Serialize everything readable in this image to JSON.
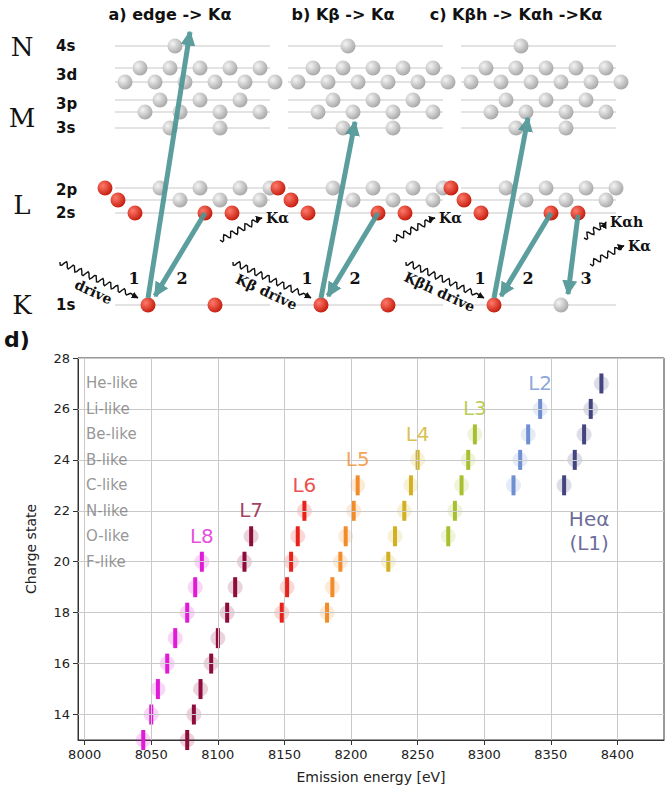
{
  "figure": {
    "panels": [
      {
        "title": "a) edge -> Kα",
        "drive": "drive",
        "steps": [
          "1",
          "2"
        ],
        "photons": [
          "Kα"
        ]
      },
      {
        "title": "b) Kβ -> Kα",
        "drive": "Kβ drive",
        "steps": [
          "1",
          "2"
        ],
        "photons": [
          "Kα"
        ]
      },
      {
        "title": "c) Kβh -> Kαh ->Kα",
        "drive": "Kβh drive",
        "steps": [
          "1",
          "2",
          "3"
        ],
        "photons": [
          "Kαh",
          "Kα"
        ]
      }
    ],
    "shells": [
      {
        "name": "N",
        "orbitals": [
          "4s"
        ]
      },
      {
        "name": "M",
        "orbitals": [
          "3d",
          "3p",
          "3s"
        ]
      },
      {
        "name": "L",
        "orbitals": [
          "2p",
          "2s"
        ]
      },
      {
        "name": "K",
        "orbitals": [
          "1s"
        ]
      }
    ]
  },
  "chart_data": {
    "type": "scatter",
    "panel_label": "d)",
    "x_label": "Emission energy [eV]",
    "y_label": "Charge state",
    "xlim": [
      7995,
      8435
    ],
    "ylim": [
      13,
      28
    ],
    "xticks": [
      8000,
      8050,
      8100,
      8150,
      8200,
      8250,
      8300,
      8350,
      8400
    ],
    "yticks": [
      14,
      16,
      18,
      20,
      22,
      24,
      26,
      28
    ],
    "grid": true,
    "marker": "vline",
    "charge_state_labels": [
      {
        "value": 27,
        "label": "He-like"
      },
      {
        "value": 26,
        "label": "Li-like"
      },
      {
        "value": 25,
        "label": "Be-like"
      },
      {
        "value": 24,
        "label": "B-like"
      },
      {
        "value": 23,
        "label": "C-like"
      },
      {
        "value": 22,
        "label": "N-like"
      },
      {
        "value": 21,
        "label": "O-like"
      },
      {
        "value": 20,
        "label": "F-like"
      }
    ],
    "series": [
      {
        "name": "Heα (L1)",
        "color": "#44447e",
        "x": [
          8388,
          8380,
          8375,
          8368,
          8360
        ],
        "values": [
          27,
          26,
          25,
          24,
          23
        ]
      },
      {
        "name": "L2",
        "color": "#6f8fd0",
        "x": [
          8342,
          8333,
          8327,
          8322
        ],
        "values": [
          26,
          25,
          24,
          23
        ]
      },
      {
        "name": "L3",
        "color": "#a8c030",
        "x": [
          8293,
          8288,
          8283,
          8278,
          8273
        ],
        "values": [
          25,
          24,
          23,
          22,
          21
        ]
      },
      {
        "name": "L4",
        "color": "#d2b022",
        "x": [
          8250,
          8245,
          8240,
          8233,
          8228
        ],
        "values": [
          24,
          23,
          22,
          21,
          20
        ]
      },
      {
        "name": "L5",
        "color": "#f28c28",
        "x": [
          8205,
          8202,
          8196,
          8192,
          8186,
          8182
        ],
        "values": [
          23,
          22,
          21,
          20,
          19,
          18
        ]
      },
      {
        "name": "L6",
        "color": "#e8211a",
        "x": [
          8165,
          8160,
          8155,
          8152,
          8148
        ],
        "values": [
          22,
          21,
          20,
          19,
          18
        ]
      },
      {
        "name": "L7",
        "color": "#8e0c3c",
        "x": [
          8125,
          8120,
          8113,
          8107,
          8100,
          8095,
          8087,
          8082,
          8077
        ],
        "values": [
          21,
          20,
          19,
          18,
          17,
          16,
          15,
          14,
          13
        ]
      },
      {
        "name": "L8",
        "color": "#e01bd6",
        "x": [
          8088,
          8083,
          8077,
          8068,
          8062,
          8055,
          8050,
          8044
        ],
        "values": [
          20,
          19,
          18,
          17,
          16,
          15,
          14,
          13
        ]
      }
    ]
  }
}
